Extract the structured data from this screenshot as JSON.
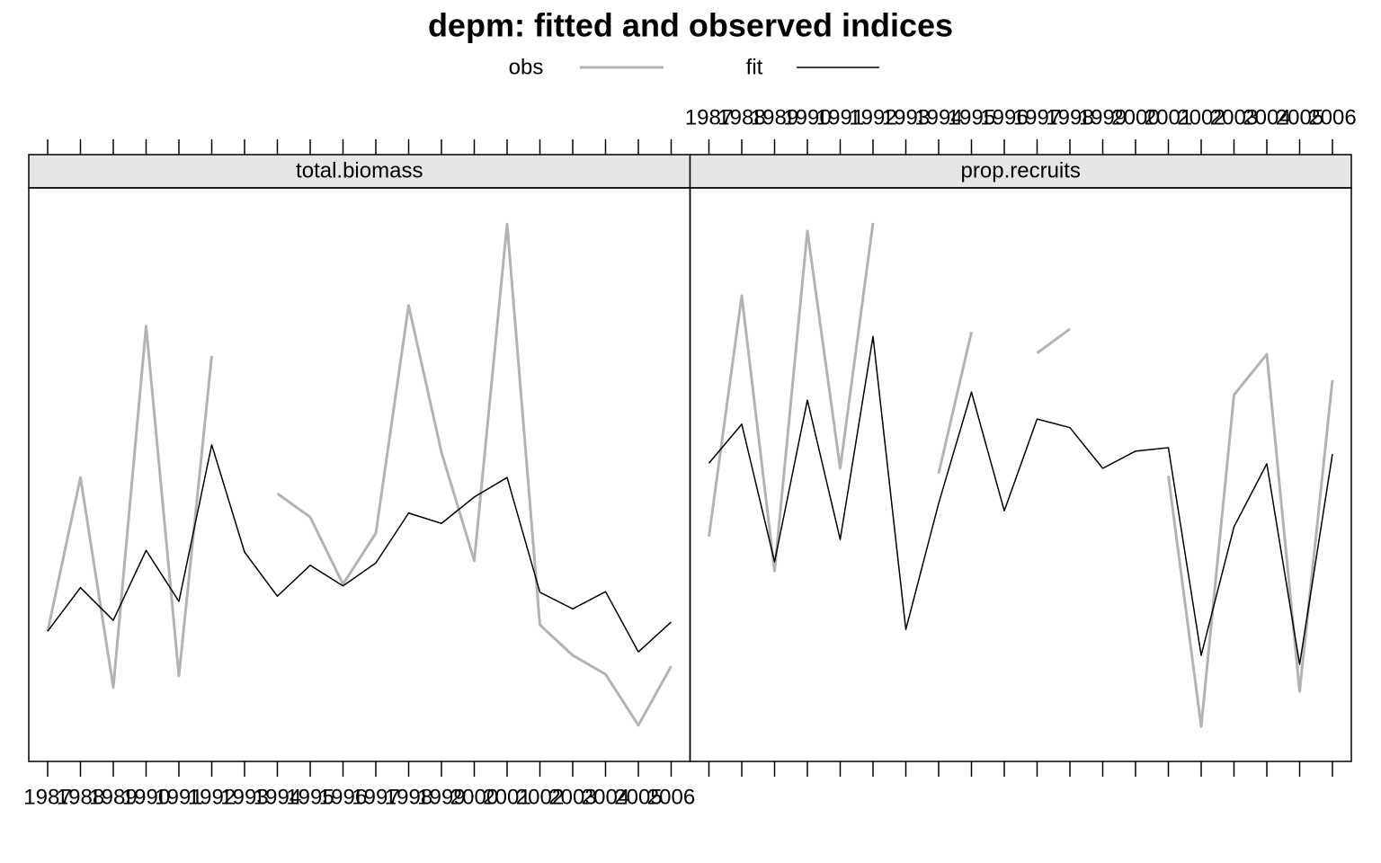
{
  "title": "depm: fitted and observed indices",
  "chart_data": [
    {
      "type": "line",
      "panel_title": "total.biomass",
      "categories": [
        "1987",
        "1988",
        "1989",
        "1990",
        "1991",
        "1992",
        "1993",
        "1994",
        "1995",
        "1996",
        "1997",
        "1998",
        "1999",
        "2000",
        "2001",
        "2002",
        "2003",
        "2004",
        "2005",
        "2006"
      ],
      "ylim": [
        0,
        100
      ],
      "series": [
        {
          "name": "obs",
          "color": "#b3b3b3",
          "values": [
            22.7,
            49.5,
            12.9,
            75.9,
            14.9,
            70.7,
            null,
            46.7,
            42.6,
            30.9,
            39.8,
            79.5,
            53.9,
            35.0,
            93.7,
            23.8,
            18.5,
            15.2,
            6.3,
            16.6
          ]
        },
        {
          "name": "fit",
          "color": "#000000",
          "values": [
            22.7,
            30.3,
            24.6,
            36.8,
            27.9,
            55.2,
            36.5,
            28.8,
            34.2,
            30.6,
            34.6,
            43.3,
            41.5,
            46.1,
            49.5,
            29.5,
            26.6,
            29.6,
            19.1,
            24.3
          ]
        }
      ]
    },
    {
      "type": "line",
      "panel_title": "prop.recruits",
      "categories": [
        "1987",
        "1988",
        "1989",
        "1990",
        "1991",
        "1992",
        "1993",
        "1994",
        "1995",
        "1996",
        "1997",
        "1998",
        "1999",
        "2000",
        "2001",
        "2002",
        "2003",
        "2004",
        "2005",
        "2006"
      ],
      "ylim": [
        0,
        100
      ],
      "series": [
        {
          "name": "obs",
          "color": "#b3b3b3",
          "values": [
            39.2,
            81.2,
            33.2,
            92.5,
            51.1,
            93.9,
            null,
            50.2,
            74.9,
            null,
            71.2,
            75.4,
            null,
            null,
            49.8,
            6.1,
            63.9,
            71.0,
            12.2,
            66.5
          ]
        },
        {
          "name": "fit",
          "color": "#000000",
          "values": [
            52.0,
            58.8,
            34.8,
            63.0,
            38.7,
            74.1,
            23.0,
            45.0,
            64.4,
            43.7,
            59.7,
            58.2,
            51.1,
            54.1,
            54.7,
            18.5,
            40.9,
            51.9,
            16.9,
            53.6
          ]
        }
      ]
    }
  ]
}
